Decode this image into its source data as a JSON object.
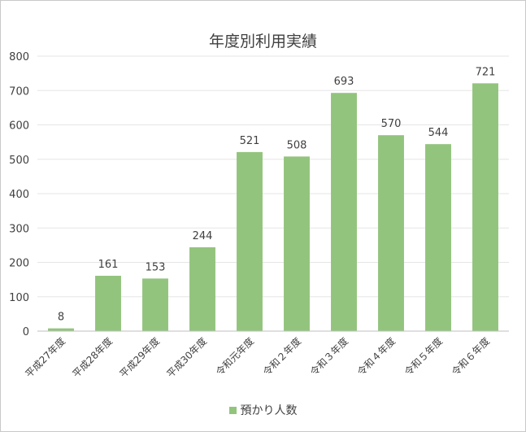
{
  "chart_data": {
    "type": "bar",
    "title": "年度別利用実績",
    "xlabel": "",
    "ylabel": "",
    "categories": [
      "平成27年度",
      "平成28年度",
      "平成29年度",
      "平成30年度",
      "令和元年度",
      "令和２年度",
      "令和３年度",
      "令和４年度",
      "令和５年度",
      "令和６年度"
    ],
    "series": [
      {
        "name": "預かり人数",
        "values": [
          8,
          161,
          153,
          244,
          521,
          508,
          693,
          570,
          544,
          721
        ]
      }
    ],
    "ylim": [
      0,
      800
    ],
    "yticks": [
      0,
      100,
      200,
      300,
      400,
      500,
      600,
      700,
      800
    ],
    "grid": true,
    "legend_position": "bottom",
    "bar_color": "#93c47d"
  }
}
